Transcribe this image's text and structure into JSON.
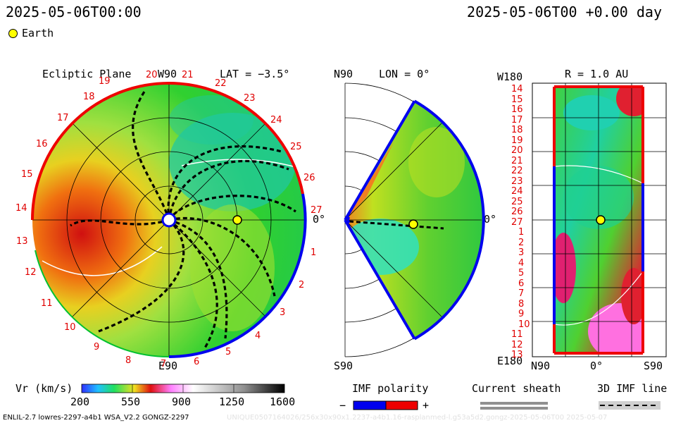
{
  "header": {
    "left_time": "2025-05-06T00:00",
    "right_time": "2025-05-06T00 +0.00 day",
    "legend_earth": "Earth"
  },
  "panels": {
    "ecliptic": {
      "title": "Ecliptic Plane",
      "top_label": "W90",
      "bottom_label": "E90",
      "right_label": "0°",
      "lat_label": "LAT = −3.5°"
    },
    "meridional": {
      "top_label": "N90",
      "lon_label": "LON = 0°",
      "bottom_label": "S90",
      "right_label": "0°"
    },
    "radial": {
      "top_left_label": "W180",
      "r_label": "R = 1.0 AU",
      "bottom_left_label": "E180",
      "x_labels": [
        "N90",
        "0°",
        "S90"
      ]
    }
  },
  "chart_data": [
    {
      "type": "heatmap",
      "title": "Ecliptic Plane",
      "carrington_ticks": [
        "19",
        "20",
        "21",
        "22",
        "23",
        "24",
        "25",
        "26",
        "27",
        "1",
        "2",
        "3",
        "4",
        "5",
        "6",
        "7",
        "8",
        "9",
        "10",
        "11",
        "12",
        "13",
        "14",
        "15",
        "16",
        "17",
        "18"
      ],
      "colorbar": {
        "label": "Vr (km/s)",
        "ticks": [
          200,
          550,
          900,
          1250,
          1600
        ],
        "range": [
          200,
          1600
        ]
      }
    },
    {
      "type": "heatmap",
      "title": "LON = 0°"
    },
    {
      "type": "heatmap",
      "title": "R = 1.0 AU",
      "y_ticks": [
        "14",
        "15",
        "16",
        "17",
        "18",
        "19",
        "20",
        "21",
        "22",
        "23",
        "24",
        "25",
        "26",
        "27",
        "1",
        "2",
        "3",
        "4",
        "5",
        "6",
        "7",
        "8",
        "9",
        "10",
        "11",
        "12",
        "13"
      ]
    }
  ],
  "legend": {
    "imf_polarity": "IMF polarity",
    "minus": "−",
    "plus": "+",
    "current_sheath": "Current sheath",
    "imf_line": "3D IMF line"
  },
  "footer": {
    "left": "ENLIL-2.7 lowres-2297-a4b1 WSA_V2.2 GONGZ-2297",
    "right": "UNIQUE0507164026/256x30x90x1.2237-a4b1.16-rasplanmed-l.g53a5d2.gongz-2025-05-06T00 2025-05-07"
  },
  "colors": {
    "imf_minus": "#0000ee",
    "imf_plus": "#ee0000",
    "earth": "#ffff00"
  }
}
